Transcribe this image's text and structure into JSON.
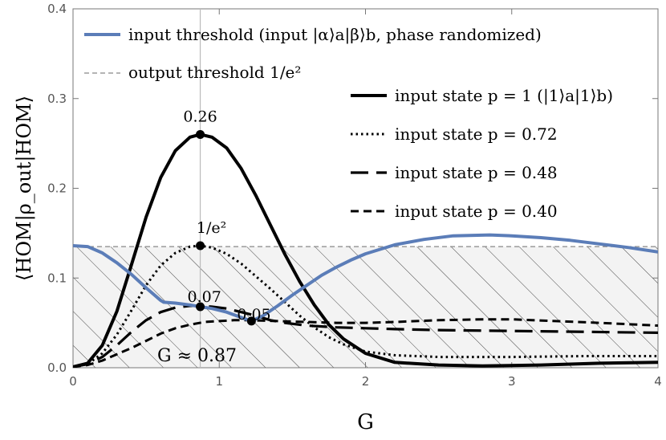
{
  "chart_data": {
    "type": "line",
    "xlabel": "G",
    "ylabel": "⟨HOM|ρ_out|HOM⟩",
    "xlim": [
      0,
      4
    ],
    "ylim": [
      0,
      0.4
    ],
    "xticks": [
      "0",
      "1",
      "2",
      "3",
      "4"
    ],
    "yticks": [
      "0.0",
      "0.1",
      "0.2",
      "0.3",
      "0.4"
    ],
    "output_threshold": 0.135,
    "marker_x": 0.87,
    "series": [
      {
        "name": "input threshold (input |α⟩a|β⟩b, phase randomized)",
        "color": "#5b7db8",
        "style": "solid",
        "points": [
          [
            0,
            0.136
          ],
          [
            0.1,
            0.135
          ],
          [
            0.2,
            0.128
          ],
          [
            0.3,
            0.117
          ],
          [
            0.4,
            0.104
          ],
          [
            0.5,
            0.089
          ],
          [
            0.6,
            0.075
          ],
          [
            0.62,
            0.073
          ],
          [
            0.7,
            0.072
          ],
          [
            0.8,
            0.07
          ],
          [
            0.87,
            0.068
          ],
          [
            0.95,
            0.066
          ],
          [
            1.05,
            0.062
          ],
          [
            1.15,
            0.056
          ],
          [
            1.22,
            0.052
          ],
          [
            1.3,
            0.058
          ],
          [
            1.4,
            0.069
          ],
          [
            1.5,
            0.081
          ],
          [
            1.6,
            0.092
          ],
          [
            1.7,
            0.103
          ],
          [
            1.8,
            0.112
          ],
          [
            1.9,
            0.12
          ],
          [
            2.0,
            0.127
          ],
          [
            2.2,
            0.137
          ],
          [
            2.4,
            0.143
          ],
          [
            2.6,
            0.147
          ],
          [
            2.85,
            0.148
          ],
          [
            3.0,
            0.147
          ],
          [
            3.2,
            0.145
          ],
          [
            3.4,
            0.142
          ],
          [
            3.6,
            0.138
          ],
          [
            3.8,
            0.134
          ],
          [
            4.0,
            0.129
          ]
        ]
      },
      {
        "name": "input state p = 1 (|1⟩a|1⟩b)",
        "color": "#000000",
        "style": "solid",
        "points": [
          [
            0,
            0.001
          ],
          [
            0.1,
            0.005
          ],
          [
            0.2,
            0.025
          ],
          [
            0.3,
            0.063
          ],
          [
            0.4,
            0.115
          ],
          [
            0.5,
            0.168
          ],
          [
            0.6,
            0.212
          ],
          [
            0.7,
            0.242
          ],
          [
            0.8,
            0.257
          ],
          [
            0.87,
            0.26
          ],
          [
            0.95,
            0.257
          ],
          [
            1.05,
            0.245
          ],
          [
            1.15,
            0.222
          ],
          [
            1.25,
            0.192
          ],
          [
            1.35,
            0.159
          ],
          [
            1.45,
            0.126
          ],
          [
            1.55,
            0.096
          ],
          [
            1.65,
            0.07
          ],
          [
            1.75,
            0.048
          ],
          [
            1.85,
            0.032
          ],
          [
            2.0,
            0.016
          ],
          [
            2.2,
            0.006
          ],
          [
            2.5,
            0.003
          ],
          [
            2.8,
            0.002
          ],
          [
            3.2,
            0.003
          ],
          [
            3.6,
            0.005
          ],
          [
            4.0,
            0.006
          ]
        ]
      },
      {
        "name": "input state p = 0.72",
        "color": "#000000",
        "style": "dotted",
        "points": [
          [
            0,
            0.001
          ],
          [
            0.1,
            0.004
          ],
          [
            0.2,
            0.016
          ],
          [
            0.3,
            0.037
          ],
          [
            0.4,
            0.064
          ],
          [
            0.5,
            0.092
          ],
          [
            0.6,
            0.114
          ],
          [
            0.7,
            0.128
          ],
          [
            0.8,
            0.135
          ],
          [
            0.87,
            0.136
          ],
          [
            0.95,
            0.134
          ],
          [
            1.05,
            0.127
          ],
          [
            1.15,
            0.116
          ],
          [
            1.25,
            0.102
          ],
          [
            1.35,
            0.088
          ],
          [
            1.45,
            0.073
          ],
          [
            1.55,
            0.058
          ],
          [
            1.65,
            0.045
          ],
          [
            1.75,
            0.034
          ],
          [
            1.85,
            0.026
          ],
          [
            2.0,
            0.018
          ],
          [
            2.2,
            0.014
          ],
          [
            2.5,
            0.012
          ],
          [
            3.0,
            0.012
          ],
          [
            3.5,
            0.013
          ],
          [
            4.0,
            0.013
          ]
        ]
      },
      {
        "name": "input state p = 0.48",
        "color": "#000000",
        "style": "longdash",
        "points": [
          [
            0,
            0.001
          ],
          [
            0.1,
            0.004
          ],
          [
            0.2,
            0.012
          ],
          [
            0.3,
            0.025
          ],
          [
            0.4,
            0.04
          ],
          [
            0.5,
            0.053
          ],
          [
            0.6,
            0.062
          ],
          [
            0.7,
            0.067
          ],
          [
            0.8,
            0.069
          ],
          [
            0.87,
            0.069
          ],
          [
            0.95,
            0.068
          ],
          [
            1.05,
            0.066
          ],
          [
            1.15,
            0.062
          ],
          [
            1.25,
            0.058
          ],
          [
            1.35,
            0.053
          ],
          [
            1.45,
            0.05
          ],
          [
            1.6,
            0.047
          ],
          [
            1.8,
            0.045
          ],
          [
            2.0,
            0.044
          ],
          [
            2.2,
            0.043
          ],
          [
            2.5,
            0.042
          ],
          [
            3.0,
            0.041
          ],
          [
            3.5,
            0.04
          ],
          [
            4.0,
            0.039
          ]
        ]
      },
      {
        "name": "input state p = 0.40",
        "color": "#000000",
        "style": "dashed",
        "points": [
          [
            0,
            0.001
          ],
          [
            0.1,
            0.003
          ],
          [
            0.2,
            0.008
          ],
          [
            0.3,
            0.015
          ],
          [
            0.4,
            0.022
          ],
          [
            0.5,
            0.03
          ],
          [
            0.6,
            0.038
          ],
          [
            0.7,
            0.044
          ],
          [
            0.8,
            0.048
          ],
          [
            0.9,
            0.051
          ],
          [
            1.0,
            0.052
          ],
          [
            1.1,
            0.053
          ],
          [
            1.2,
            0.053
          ],
          [
            1.4,
            0.052
          ],
          [
            1.6,
            0.051
          ],
          [
            1.8,
            0.05
          ],
          [
            2.0,
            0.05
          ],
          [
            2.2,
            0.051
          ],
          [
            2.5,
            0.053
          ],
          [
            2.8,
            0.054
          ],
          [
            3.0,
            0.054
          ],
          [
            3.3,
            0.052
          ],
          [
            3.6,
            0.05
          ],
          [
            4.0,
            0.047
          ]
        ]
      }
    ],
    "legend_threshold": {
      "input": "input threshold (input |α⟩a|β⟩b, phase randomized)",
      "output": "output threshold 1/e²"
    },
    "legend_states": [
      "input state p = 1 (|1⟩a|1⟩b)",
      "input state p = 0.72",
      "input state p = 0.48",
      "input state p = 0.40"
    ],
    "markers": [
      {
        "x": 0.87,
        "y": 0.26,
        "label": "0.26"
      },
      {
        "x": 0.87,
        "y": 0.136,
        "label": "1/e²"
      },
      {
        "x": 0.87,
        "y": 0.068,
        "label": "0.07"
      },
      {
        "x": 1.22,
        "y": 0.052,
        "label": "0.05"
      }
    ],
    "annotation": "G ≈ 0.87"
  }
}
